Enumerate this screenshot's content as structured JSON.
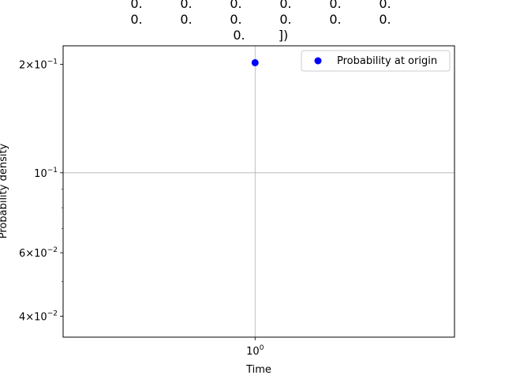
{
  "chart_data": {
    "type": "scatter",
    "title_lines": [
      [
        "0.",
        "0.",
        "0.",
        "0.",
        "0.",
        "0."
      ],
      [
        "0.",
        "0.",
        "0.",
        "0.",
        "0.",
        "0."
      ],
      [
        "0.",
        "])"
      ]
    ],
    "xlabel": "Time",
    "ylabel": "Probability density",
    "x_scale": "log",
    "y_scale": "log",
    "xlim": [
      0.6,
      1.7
    ],
    "ylim": [
      0.035,
      0.225
    ],
    "x_ticks": [
      {
        "value": 1,
        "base": "10",
        "exp": "0"
      }
    ],
    "y_ticks": [
      {
        "value": 0.2,
        "mant": "2",
        "base": "10",
        "exp": "−1"
      },
      {
        "value": 0.1,
        "mant": "",
        "base": "10",
        "exp": "−1"
      },
      {
        "value": 0.06,
        "mant": "6",
        "base": "10",
        "exp": "−2"
      },
      {
        "value": 0.04,
        "mant": "4",
        "base": "10",
        "exp": "−2"
      }
    ],
    "y_minor_ticks": [
      0.2,
      0.1,
      0.09,
      0.08,
      0.07,
      0.06,
      0.05,
      0.04
    ],
    "series": [
      {
        "name": "Probability at origin",
        "color": "#0000ff",
        "marker": "circle",
        "points": [
          {
            "x": 1,
            "y": 0.202
          }
        ]
      }
    ],
    "grid": true,
    "legend_position": "upper-right"
  }
}
